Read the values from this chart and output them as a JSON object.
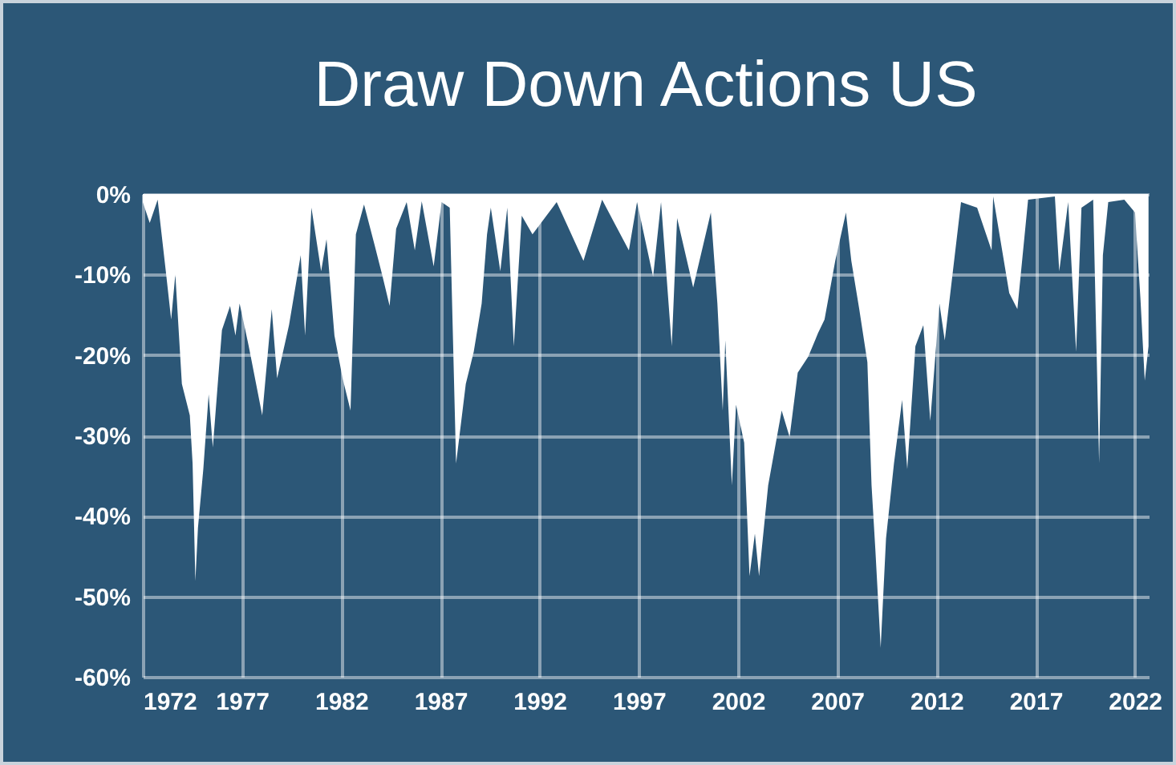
{
  "chart_data": {
    "type": "area",
    "title": "Draw Down Actions US",
    "x": [
      1972.0,
      1972.35,
      1972.75,
      1973.16,
      1973.43,
      1973.64,
      1973.97,
      1974.37,
      1974.51,
      1974.65,
      1974.78,
      1975.05,
      1975.32,
      1975.53,
      1975.99,
      1976.4,
      1976.67,
      1976.88,
      1977.34,
      1978.02,
      1978.5,
      1978.77,
      1979.37,
      1979.96,
      1980.18,
      1980.5,
      1980.99,
      1981.26,
      1981.66,
      1982.07,
      1982.47,
      1982.74,
      1983.15,
      1983.68,
      1984.09,
      1984.44,
      1984.77,
      1985.3,
      1985.71,
      1986.06,
      1986.66,
      1987.06,
      1987.47,
      1987.79,
      1988.28,
      1988.68,
      1989.08,
      1989.35,
      1989.54,
      1990.02,
      1990.37,
      1990.7,
      1991.1,
      1991.64,
      1992.86,
      1994.21,
      1995.15,
      1996.5,
      1996.91,
      1997.72,
      1998.12,
      1998.66,
      1998.93,
      1999.74,
      2000.63,
      2000.96,
      2001.23,
      2001.36,
      2001.69,
      2001.9,
      2002.31,
      2002.58,
      2002.85,
      2003.06,
      2003.52,
      2004.2,
      2004.6,
      2005.01,
      2005.54,
      2006.03,
      2006.36,
      2006.9,
      2007.44,
      2007.71,
      2008.11,
      2008.52,
      2008.73,
      2008.92,
      2009.19,
      2009.46,
      2009.86,
      2010.27,
      2010.53,
      2010.94,
      2011.34,
      2011.69,
      2012.15,
      2012.42,
      2012.83,
      2013.24,
      2014.05,
      2014.78,
      2014.86,
      2015.67,
      2016.08,
      2016.62,
      2017.97,
      2018.19,
      2018.64,
      2019.04,
      2019.31,
      2019.9,
      2020.2,
      2020.39,
      2020.66,
      2021.47,
      2022.01,
      2022.28,
      2022.5,
      2022.69
    ],
    "series": [
      {
        "color": "#ffffff",
        "values": [
          -1,
          -3.6,
          -0.7,
          -9.6,
          -15.6,
          -10,
          -23.6,
          -27.5,
          -33.5,
          -48.1,
          -41.5,
          -34.2,
          -24.9,
          -31.5,
          -16.9,
          -13.9,
          -17.6,
          -13.6,
          -18.9,
          -27.5,
          -14.3,
          -22.9,
          -16.3,
          -7.6,
          -17.6,
          -1.7,
          -9.6,
          -5.6,
          -17.6,
          -22.9,
          -26.9,
          -5,
          -1.3,
          -6.3,
          -10.3,
          -13.9,
          -4.3,
          -1,
          -7,
          -0.9,
          -9,
          -1,
          -1.7,
          -33.5,
          -23.6,
          -19.6,
          -13.6,
          -5,
          -1.7,
          -9.6,
          -1.7,
          -18.9,
          -2.7,
          -5,
          -1,
          -8.3,
          -0.7,
          -7,
          -1,
          -10.3,
          -1,
          -18.9,
          -3,
          -11.6,
          -2.3,
          -13.6,
          -26.9,
          -18.2,
          -36.2,
          -26.2,
          -30.9,
          -47.5,
          -42.2,
          -47.5,
          -36.2,
          -26.9,
          -30.2,
          -22.2,
          -20.2,
          -17.3,
          -15.6,
          -8.3,
          -2.3,
          -8.3,
          -14.3,
          -20.9,
          -36.2,
          -44.1,
          -56.4,
          -42.8,
          -33.5,
          -25.6,
          -34.2,
          -18.9,
          -16.3,
          -28.2,
          -13.6,
          -18.2,
          -9.6,
          -1,
          -1.7,
          -7,
          -0.3,
          -12.3,
          -14.3,
          -0.7,
          -0.3,
          -9.6,
          -1,
          -19.6,
          -1.7,
          -0.7,
          -33.5,
          -7.6,
          -1,
          -0.7,
          -2.3,
          -12.9,
          -23.2,
          -18.9
        ]
      }
    ],
    "xlim": [
      1972,
      2022.7
    ],
    "xticks": [
      1972,
      1977,
      1982,
      1987,
      1992,
      1997,
      2002,
      2007,
      2012,
      2017,
      2022
    ],
    "ylim": [
      -60,
      0
    ],
    "yticks": [
      {
        "value": 0,
        "label": "0%"
      },
      {
        "value": -10,
        "label": "-10%"
      },
      {
        "value": -20,
        "label": "-20%"
      },
      {
        "value": -30,
        "label": "-30%"
      },
      {
        "value": -40,
        "label": "-40%"
      },
      {
        "value": -50,
        "label": "-50%"
      },
      {
        "value": -60,
        "label": "-60%"
      }
    ],
    "grid": true
  }
}
